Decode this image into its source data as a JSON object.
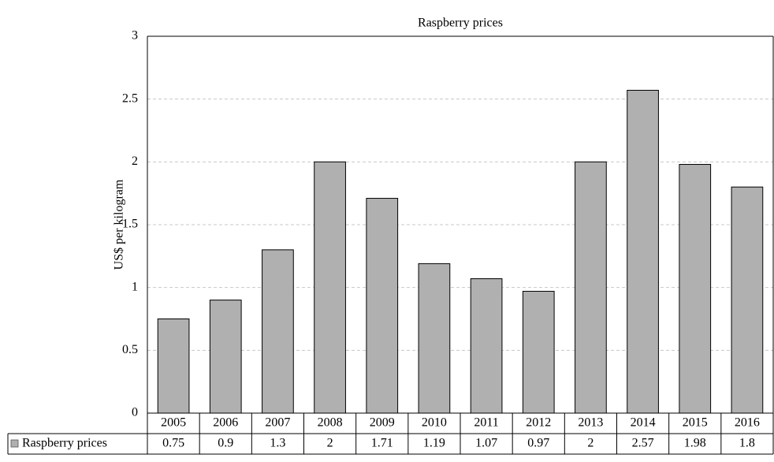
{
  "chart_data": {
    "type": "bar",
    "title": "Raspberry prices",
    "y_label": "US$ per kilogram",
    "categories": [
      "2005",
      "2006",
      "2007",
      "2008",
      "2009",
      "2010",
      "2011",
      "2012",
      "2013",
      "2014",
      "2015",
      "2016"
    ],
    "series": [
      {
        "name": "Raspberry prices",
        "color": "#b0b0b0",
        "values": [
          0.75,
          0.9,
          1.3,
          2,
          1.71,
          1.19,
          1.07,
          0.97,
          2,
          2.57,
          1.98,
          1.8
        ]
      }
    ],
    "ylim": [
      0,
      3
    ],
    "yticks": [
      0,
      0.5,
      1,
      1.5,
      2,
      2.5,
      3
    ],
    "grid": true,
    "data_table": true
  }
}
